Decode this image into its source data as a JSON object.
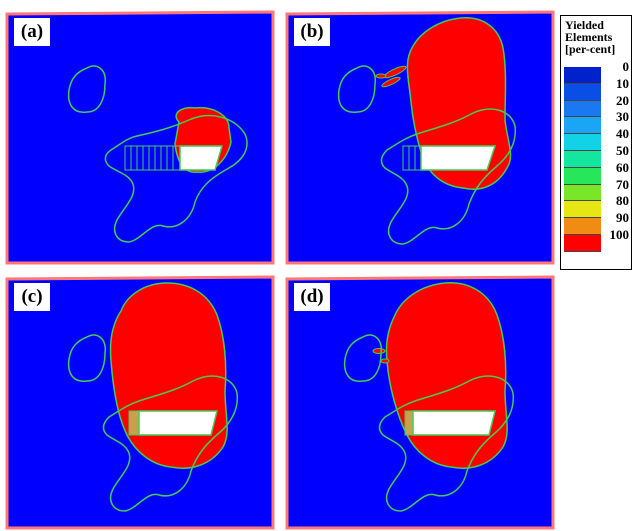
{
  "panels": [
    {
      "label": "(a)"
    },
    {
      "label": "(b)"
    },
    {
      "label": "(c)"
    },
    {
      "label": "(d)"
    }
  ],
  "legend": {
    "title_lines": [
      "Yielded",
      "Elements",
      "[per-cent]"
    ],
    "ticks": [
      "0",
      "10",
      "20",
      "30",
      "40",
      "50",
      "60",
      "70",
      "80",
      "90",
      "100"
    ],
    "colors": [
      "#0022cc",
      "#0a4ee6",
      "#1a78f0",
      "#1aa6f5",
      "#14d2e6",
      "#14e6a0",
      "#28e65a",
      "#7ae628",
      "#e6e614",
      "#f08c14",
      "#ff0000"
    ]
  },
  "colors": {
    "background": "#0000ff",
    "yielded": "#ff0000",
    "contour": "#44cc55",
    "edge": "#ff7777"
  }
}
